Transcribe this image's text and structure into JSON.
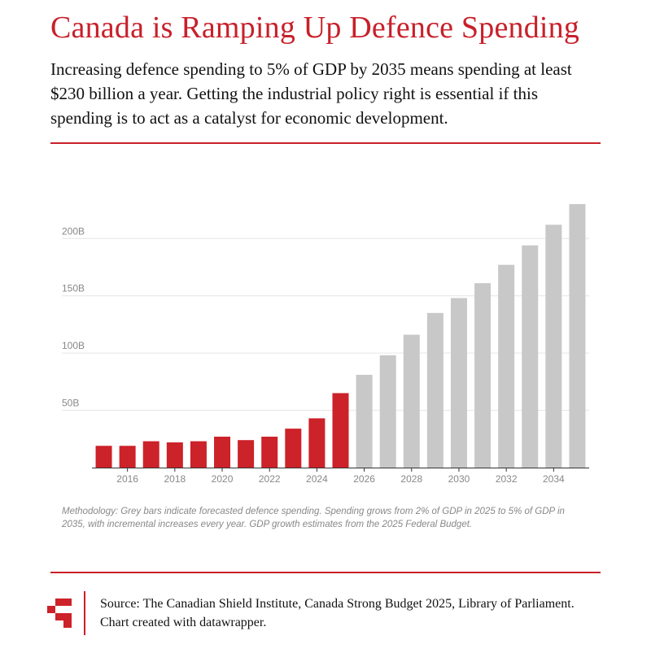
{
  "header": {
    "title": "Canada is Ramping Up Defence Spending",
    "subtitle": "Increasing defence spending to 5% of GDP by 2035 means spending at least $230 billion a year. Getting the industrial policy right is essential if this spending is to act as a catalyst for economic development."
  },
  "chart_data": {
    "type": "bar",
    "title": "",
    "xlabel": "",
    "ylabel": "",
    "ylim": [
      0,
      230
    ],
    "grid": true,
    "categories": [
      2015,
      2016,
      2017,
      2018,
      2019,
      2020,
      2021,
      2022,
      2023,
      2024,
      2025,
      2026,
      2027,
      2028,
      2029,
      2030,
      2031,
      2032,
      2033,
      2034,
      2035
    ],
    "values": [
      19,
      19,
      23,
      22,
      23,
      27,
      24,
      27,
      34,
      43,
      65,
      81,
      98,
      116,
      135,
      148,
      161,
      177,
      194,
      212,
      230
    ],
    "actual_through": 2025,
    "x_tick_labels": [
      "2016",
      "2018",
      "2020",
      "2022",
      "2024",
      "2026",
      "2028",
      "2030",
      "2032",
      "2034"
    ],
    "y_tick_labels": [
      {
        "value": 50,
        "label": "50B"
      },
      {
        "value": 100,
        "label": "100B"
      },
      {
        "value": 150,
        "label": "150B"
      },
      {
        "value": 200,
        "label": "200B"
      }
    ],
    "colors": {
      "actual": "#cc2229",
      "forecast": "#c8c8c8",
      "grid": "#e6e6e6",
      "axis": "#333333"
    }
  },
  "methodology": "Methodology: Grey bars indicate forecasted defence spending. Spending  grows from 2% of GDP in 2025 to 5% of GDP in 2035, with incremental increases every year. GDP growth estimates from the 2025 Federal Budget.",
  "footer": {
    "source": "Source: The Canadian Shield Institute, Canada Strong Budget 2025, Library of Parliament. Chart created with datawrapper.",
    "logo_icon": "canadian-shield-logo-icon"
  }
}
